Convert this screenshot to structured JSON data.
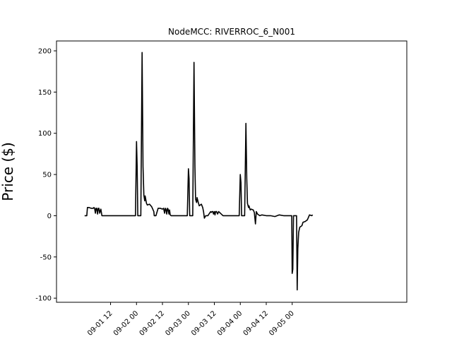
{
  "chart_data": {
    "type": "line",
    "title": "NodeMCC: RIVERROC_6_N001",
    "xlabel": "",
    "ylabel": "Price ($)",
    "ylim": [
      -105,
      212
    ],
    "xlim_hours": [
      -13.0,
      149.0
    ],
    "grid": false,
    "legend": "none",
    "line_color": "#000000",
    "x_ticks": [
      {
        "label": "09-01 12",
        "hour": 12
      },
      {
        "label": "09-02 00",
        "hour": 24
      },
      {
        "label": "09-02 12",
        "hour": 36
      },
      {
        "label": "09-03 00",
        "hour": 48
      },
      {
        "label": "09-03 12",
        "hour": 60
      },
      {
        "label": "09-04 00",
        "hour": 72
      },
      {
        "label": "09-04 12",
        "hour": 84
      },
      {
        "label": "09-05 00",
        "hour": 96
      }
    ],
    "y_ticks": [
      -100,
      -50,
      0,
      50,
      100,
      150,
      200
    ],
    "series": [
      {
        "name": "",
        "x_hours": [
          0,
          1,
          1.3,
          2,
          3,
          4,
          4.3,
          4.6,
          5,
          5.3,
          5.6,
          6,
          6.3,
          6.6,
          7,
          7.5,
          8,
          12,
          16,
          20,
          23.5,
          24,
          24.3,
          24.6,
          25,
          26,
          26.6,
          27,
          27.4,
          27.8,
          28,
          28.6,
          29,
          30,
          31,
          32,
          32.2,
          32.6,
          33,
          34,
          35,
          36,
          36.5,
          37,
          37.3,
          37.6,
          38,
          38.3,
          38.6,
          39,
          39.3,
          39.6,
          40,
          41,
          44,
          47.5,
          48,
          48.3,
          48.6,
          49,
          50,
          50.6,
          51,
          51.3,
          51.8,
          52,
          52.6,
          53,
          54,
          54.6,
          55,
          55.4,
          56,
          57,
          58,
          58.3,
          58.6,
          59,
          59.3,
          59.6,
          60,
          60.3,
          60.6,
          61,
          61.5,
          62,
          64,
          68,
          71.5,
          72,
          72.3,
          72.6,
          73,
          74,
          74.6,
          75,
          75.3,
          75.8,
          76,
          76.6,
          77,
          78,
          78.5,
          79,
          79.4,
          80,
          81,
          82,
          84,
          86,
          88,
          90,
          92,
          95.5,
          95.8,
          96,
          96.3,
          96.6,
          97,
          98,
          98.3,
          98.6,
          99,
          99.5,
          100,
          100.5,
          101,
          102,
          103,
          104,
          105,
          105.5
        ],
        "y": [
          0,
          0,
          10,
          10,
          9,
          9,
          10,
          9,
          3,
          9,
          9,
          2,
          9,
          9,
          3,
          8,
          0,
          0,
          0,
          0,
          0,
          90,
          60,
          0,
          0,
          0,
          198,
          60,
          25,
          18,
          24,
          15,
          13,
          14,
          11,
          5,
          0,
          0,
          0,
          9,
          9,
          8,
          9,
          3,
          9,
          8,
          2,
          9,
          8,
          2,
          7,
          1,
          0,
          0,
          0,
          0,
          57,
          45,
          0,
          0,
          0,
          186,
          60,
          20,
          16,
          22,
          16,
          12,
          14,
          10,
          5,
          -3,
          0,
          0,
          4,
          5,
          4,
          5,
          5,
          2,
          5,
          1,
          5,
          5,
          2,
          5,
          0,
          0,
          0,
          50,
          40,
          0,
          0,
          0,
          112,
          45,
          15,
          10,
          12,
          7,
          8,
          7,
          4,
          -10,
          5,
          2,
          0,
          1,
          0,
          0,
          -1,
          1,
          0,
          0,
          0,
          -70,
          -65,
          0,
          0,
          0,
          -90,
          -40,
          -20,
          -14,
          -13,
          -12,
          -8,
          -7,
          -5,
          1,
          0,
          1
        ]
      }
    ]
  }
}
